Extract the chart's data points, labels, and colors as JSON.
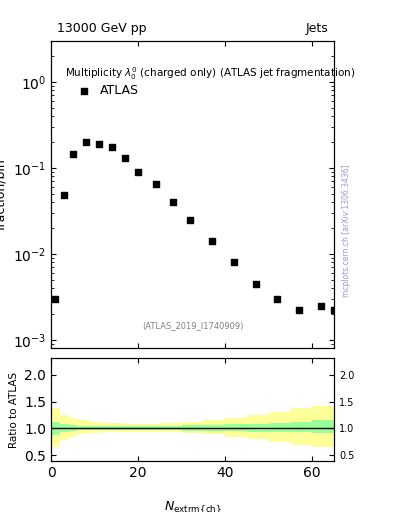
{
  "title_left": "13000 GeV pp",
  "title_right": "Jets",
  "main_title": "Multiplicity $\\lambda_0^0$ (charged only) (ATLAS jet fragmentation)",
  "legend_label": "ATLAS",
  "ref_label": "(ATLAS_2019_I1740909)",
  "ylabel_main": "fraction/bin",
  "ylabel_ratio": "Ratio to ATLAS",
  "xlabel": "$N_{\\mathrm{\\mathsf{extrm\\{ch\\}}}}$",
  "data_x": [
    1,
    3,
    5,
    8,
    11,
    14,
    17,
    20,
    24,
    28,
    32,
    37,
    42,
    47,
    52,
    57,
    62,
    65
  ],
  "data_y": [
    0.003,
    0.048,
    0.145,
    0.2,
    0.19,
    0.175,
    0.13,
    0.09,
    0.065,
    0.04,
    0.025,
    0.014,
    0.008,
    0.0045,
    0.003,
    0.0022,
    0.0025,
    0.0022
  ],
  "xlim": [
    0,
    65
  ],
  "ylim_main": [
    0.0008,
    3
  ],
  "ylim_ratio": [
    0.4,
    2.3
  ],
  "ratio_yticks": [
    0.5,
    1.0,
    1.5,
    2.0
  ],
  "green_band_x": [
    0,
    2,
    4,
    6,
    9,
    12,
    16,
    20,
    25,
    30,
    35,
    40,
    45,
    50,
    55,
    60,
    63,
    66
  ],
  "green_band_lo": [
    0.87,
    0.87,
    0.93,
    0.95,
    0.97,
    0.97,
    0.97,
    0.97,
    0.97,
    0.97,
    0.96,
    0.96,
    0.95,
    0.94,
    0.93,
    0.93,
    0.92,
    0.92
  ],
  "green_band_hi": [
    1.12,
    1.12,
    1.08,
    1.06,
    1.04,
    1.04,
    1.04,
    1.04,
    1.05,
    1.05,
    1.06,
    1.07,
    1.08,
    1.09,
    1.1,
    1.12,
    1.15,
    1.15
  ],
  "yellow_band_x": [
    0,
    2,
    4,
    6,
    9,
    12,
    16,
    20,
    25,
    30,
    35,
    40,
    45,
    50,
    55,
    60,
    63,
    66
  ],
  "yellow_band_lo": [
    0.65,
    0.65,
    0.78,
    0.85,
    0.9,
    0.92,
    0.93,
    0.94,
    0.94,
    0.93,
    0.92,
    0.89,
    0.85,
    0.8,
    0.75,
    0.7,
    0.65,
    0.65
  ],
  "yellow_band_hi": [
    1.38,
    1.38,
    1.25,
    1.2,
    1.15,
    1.12,
    1.1,
    1.08,
    1.08,
    1.1,
    1.12,
    1.15,
    1.2,
    1.25,
    1.3,
    1.38,
    1.42,
    1.42
  ],
  "green_color": "#99ff99",
  "yellow_color": "#ffff99",
  "marker_color": "black",
  "marker_style": "s",
  "marker_size": 5,
  "right_axis_label_color": "#7f7f7f",
  "watermark_text": "mcplots.cern.ch [arXiv:1306.3436]"
}
